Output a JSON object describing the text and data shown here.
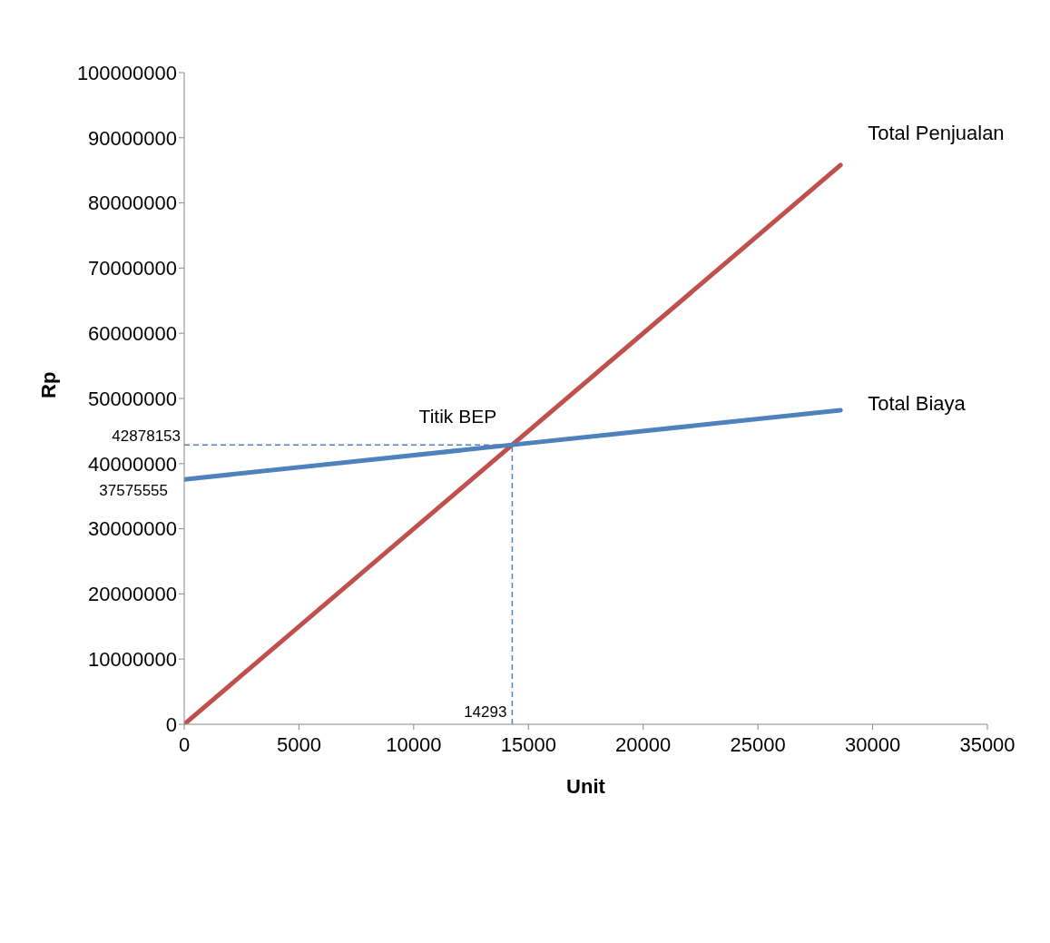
{
  "chart_data": {
    "type": "line",
    "xlabel": "Unit",
    "ylabel": "Rp",
    "xlim": [
      0,
      35000
    ],
    "xticks": [
      0,
      5000,
      10000,
      15000,
      20000,
      25000,
      30000,
      35000
    ],
    "ylim": [
      0,
      100000000
    ],
    "yticks": [
      0,
      10000000,
      20000000,
      30000000,
      40000000,
      50000000,
      60000000,
      70000000,
      80000000,
      90000000,
      100000000
    ],
    "series": [
      {
        "name": "Total Penjualan",
        "color": "#c0504d",
        "x": [
          0,
          14293,
          28600
        ],
        "values": [
          0,
          42878153,
          85800000
        ]
      },
      {
        "name": "Total Biaya",
        "color": "#4f81bd",
        "x": [
          0,
          14293,
          28600
        ],
        "values": [
          37575555,
          42878153,
          48180000
        ]
      }
    ],
    "ref_lines": [
      {
        "axis": "y",
        "value": 42878153,
        "label": "42878153",
        "color": "#4f81bd",
        "line_style": "dashed"
      },
      {
        "axis": "x",
        "value": 14293,
        "label": "14293",
        "color": "#4f81bd",
        "line_style": "dashed"
      }
    ],
    "annotations": [
      {
        "text": "Titik BEP",
        "x": 14293,
        "y": 42878153
      },
      {
        "text": "37575555",
        "x": 0,
        "y": 37575555
      }
    ],
    "grid": false,
    "legend": false,
    "marker": "none",
    "line_style": "solid"
  }
}
